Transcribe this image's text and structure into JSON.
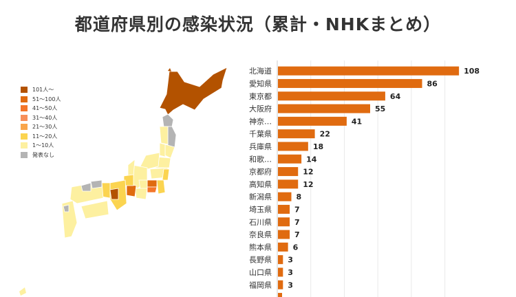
{
  "title": "都道府県別の感染状況（累計・NHKまとめ）",
  "map": {
    "legend": [
      {
        "label": "101人～",
        "color": "#b35200"
      },
      {
        "label": "51～100人",
        "color": "#e06b10"
      },
      {
        "label": "41～50人",
        "color": "#f4762a"
      },
      {
        "label": "31～40人",
        "color": "#f78f5a"
      },
      {
        "label": "21～30人",
        "color": "#f9a54a"
      },
      {
        "label": "11～20人",
        "color": "#fbd450"
      },
      {
        "label": "1～10人",
        "color": "#fdf0a0"
      },
      {
        "label": "発表なし",
        "color": "#b4b4b4"
      }
    ]
  },
  "chart_data": {
    "type": "bar",
    "orientation": "horizontal",
    "categories": [
      "北海道",
      "愛知県",
      "東京都",
      "大阪府",
      "神奈…",
      "千葉県",
      "兵庫県",
      "和歌…",
      "京都府",
      "高知県",
      "新潟県",
      "埼玉県",
      "石川県",
      "奈良県",
      "熊本県",
      "長野県",
      "山口県",
      "福岡県"
    ],
    "values": [
      108,
      86,
      64,
      55,
      41,
      22,
      18,
      14,
      12,
      12,
      8,
      7,
      7,
      7,
      6,
      3,
      3,
      3
    ],
    "xlim": [
      0,
      110
    ],
    "grid": true,
    "bar_color": "#e06b10"
  }
}
